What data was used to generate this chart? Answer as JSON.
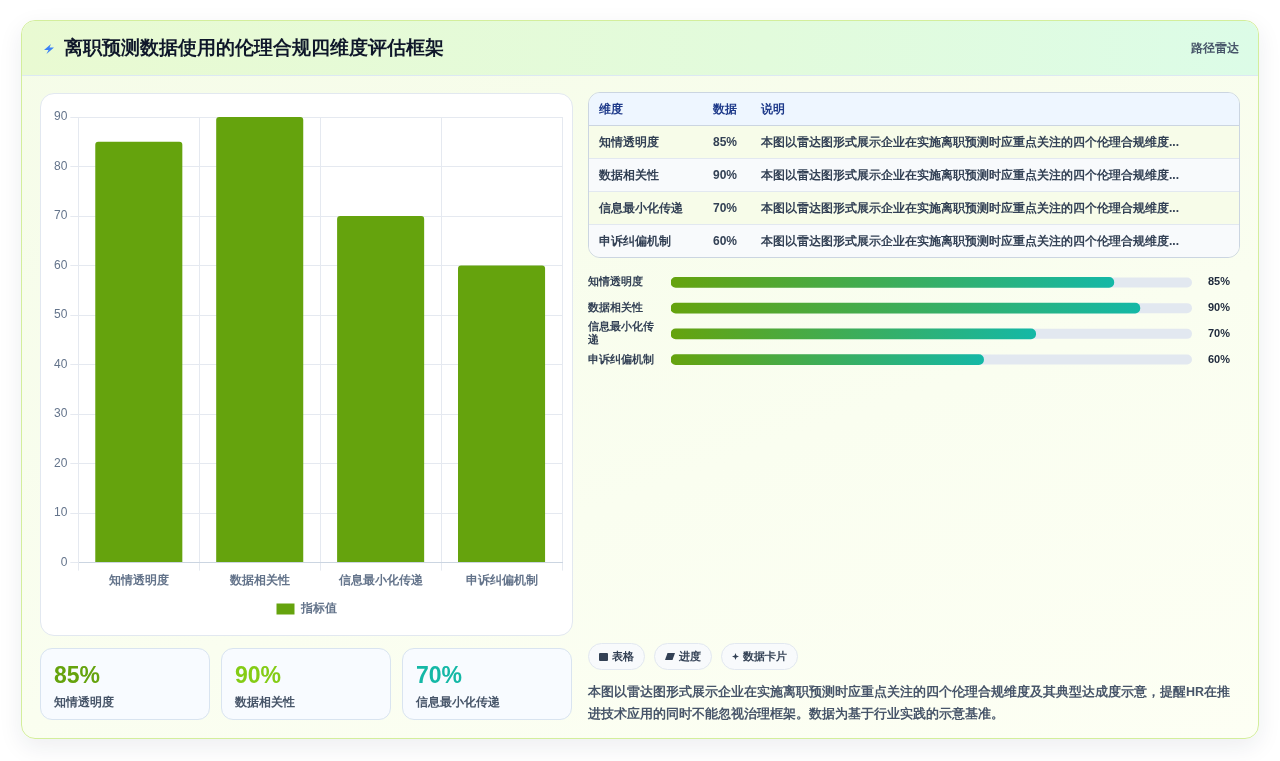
{
  "chart_data": [
    {
      "type": "other",
      "title": "离职预测数据使用的伦理合规四维度评估框架",
      "subtitle": "路径雷达"
    },
    {
      "type": "bar",
      "categories": [
        "知情透明度",
        "数据相关性",
        "信息最小化传递",
        "申诉纠偏机制"
      ],
      "series": [
        {
          "name": "指标值",
          "color": "#65a30d",
          "values": [
            85,
            90,
            70,
            60
          ]
        }
      ],
      "ylim": [
        0,
        90
      ],
      "yticks": [
        0,
        10,
        20,
        30,
        40,
        50,
        60,
        70,
        80,
        90
      ],
      "grid": true,
      "legend": "bottom"
    },
    {
      "type": "other",
      "categories": [
        "知情透明度",
        "数据相关性",
        "信息最小化传递",
        "申诉纠偏机制"
      ],
      "value_labels": [
        "85%",
        "90%",
        "70%",
        "60%"
      ],
      "annotations": [
        "维度",
        "数据",
        "说明",
        "本图以雷达图形式展示企业在实施离职预测时应重点关注的四个伦理合规维度...",
        "本图以雷达图形式展示企业在实施离职预测时应重点关注的四个伦理合规维度...",
        "本图以雷达图形式展示企业在实施离职预测时应重点关注的四个伦理合规维度...",
        "本图以雷达图形式展示企业在实施离职预测时应重点关注的四个伦理合规维度..."
      ]
    },
    {
      "type": "bar",
      "orientation": "horizontal",
      "categories": [
        "知情透明度",
        "数据相关性",
        "信息最小化传递",
        "申诉纠偏机制"
      ],
      "series": [
        {
          "color": "#65a30d",
          "values": [
            85,
            90,
            70,
            60
          ],
          "value_labels": [
            "85%",
            "90%",
            "70%",
            "60%"
          ]
        }
      ],
      "xlim": [
        0,
        100
      ],
      "tick_labels": "y"
    },
    {
      "type": "other",
      "categories": [
        "知情透明度",
        "数据相关性",
        "信息最小化传递"
      ],
      "value_labels": [
        "85%",
        "90%",
        "70%"
      ]
    },
    {
      "type": "other",
      "categories": [
        "表格",
        "进度",
        "数据卡片"
      ],
      "annotations": [
        "本图以雷达图形式展示企业在实施离职预测时应重点关注的四个伦理合规维度及其典型达成度示意，提醒HR在推进技术应用的同时不能忽视治理框架。数据为基于行业实践的示意基准。"
      ]
    }
  ]
}
